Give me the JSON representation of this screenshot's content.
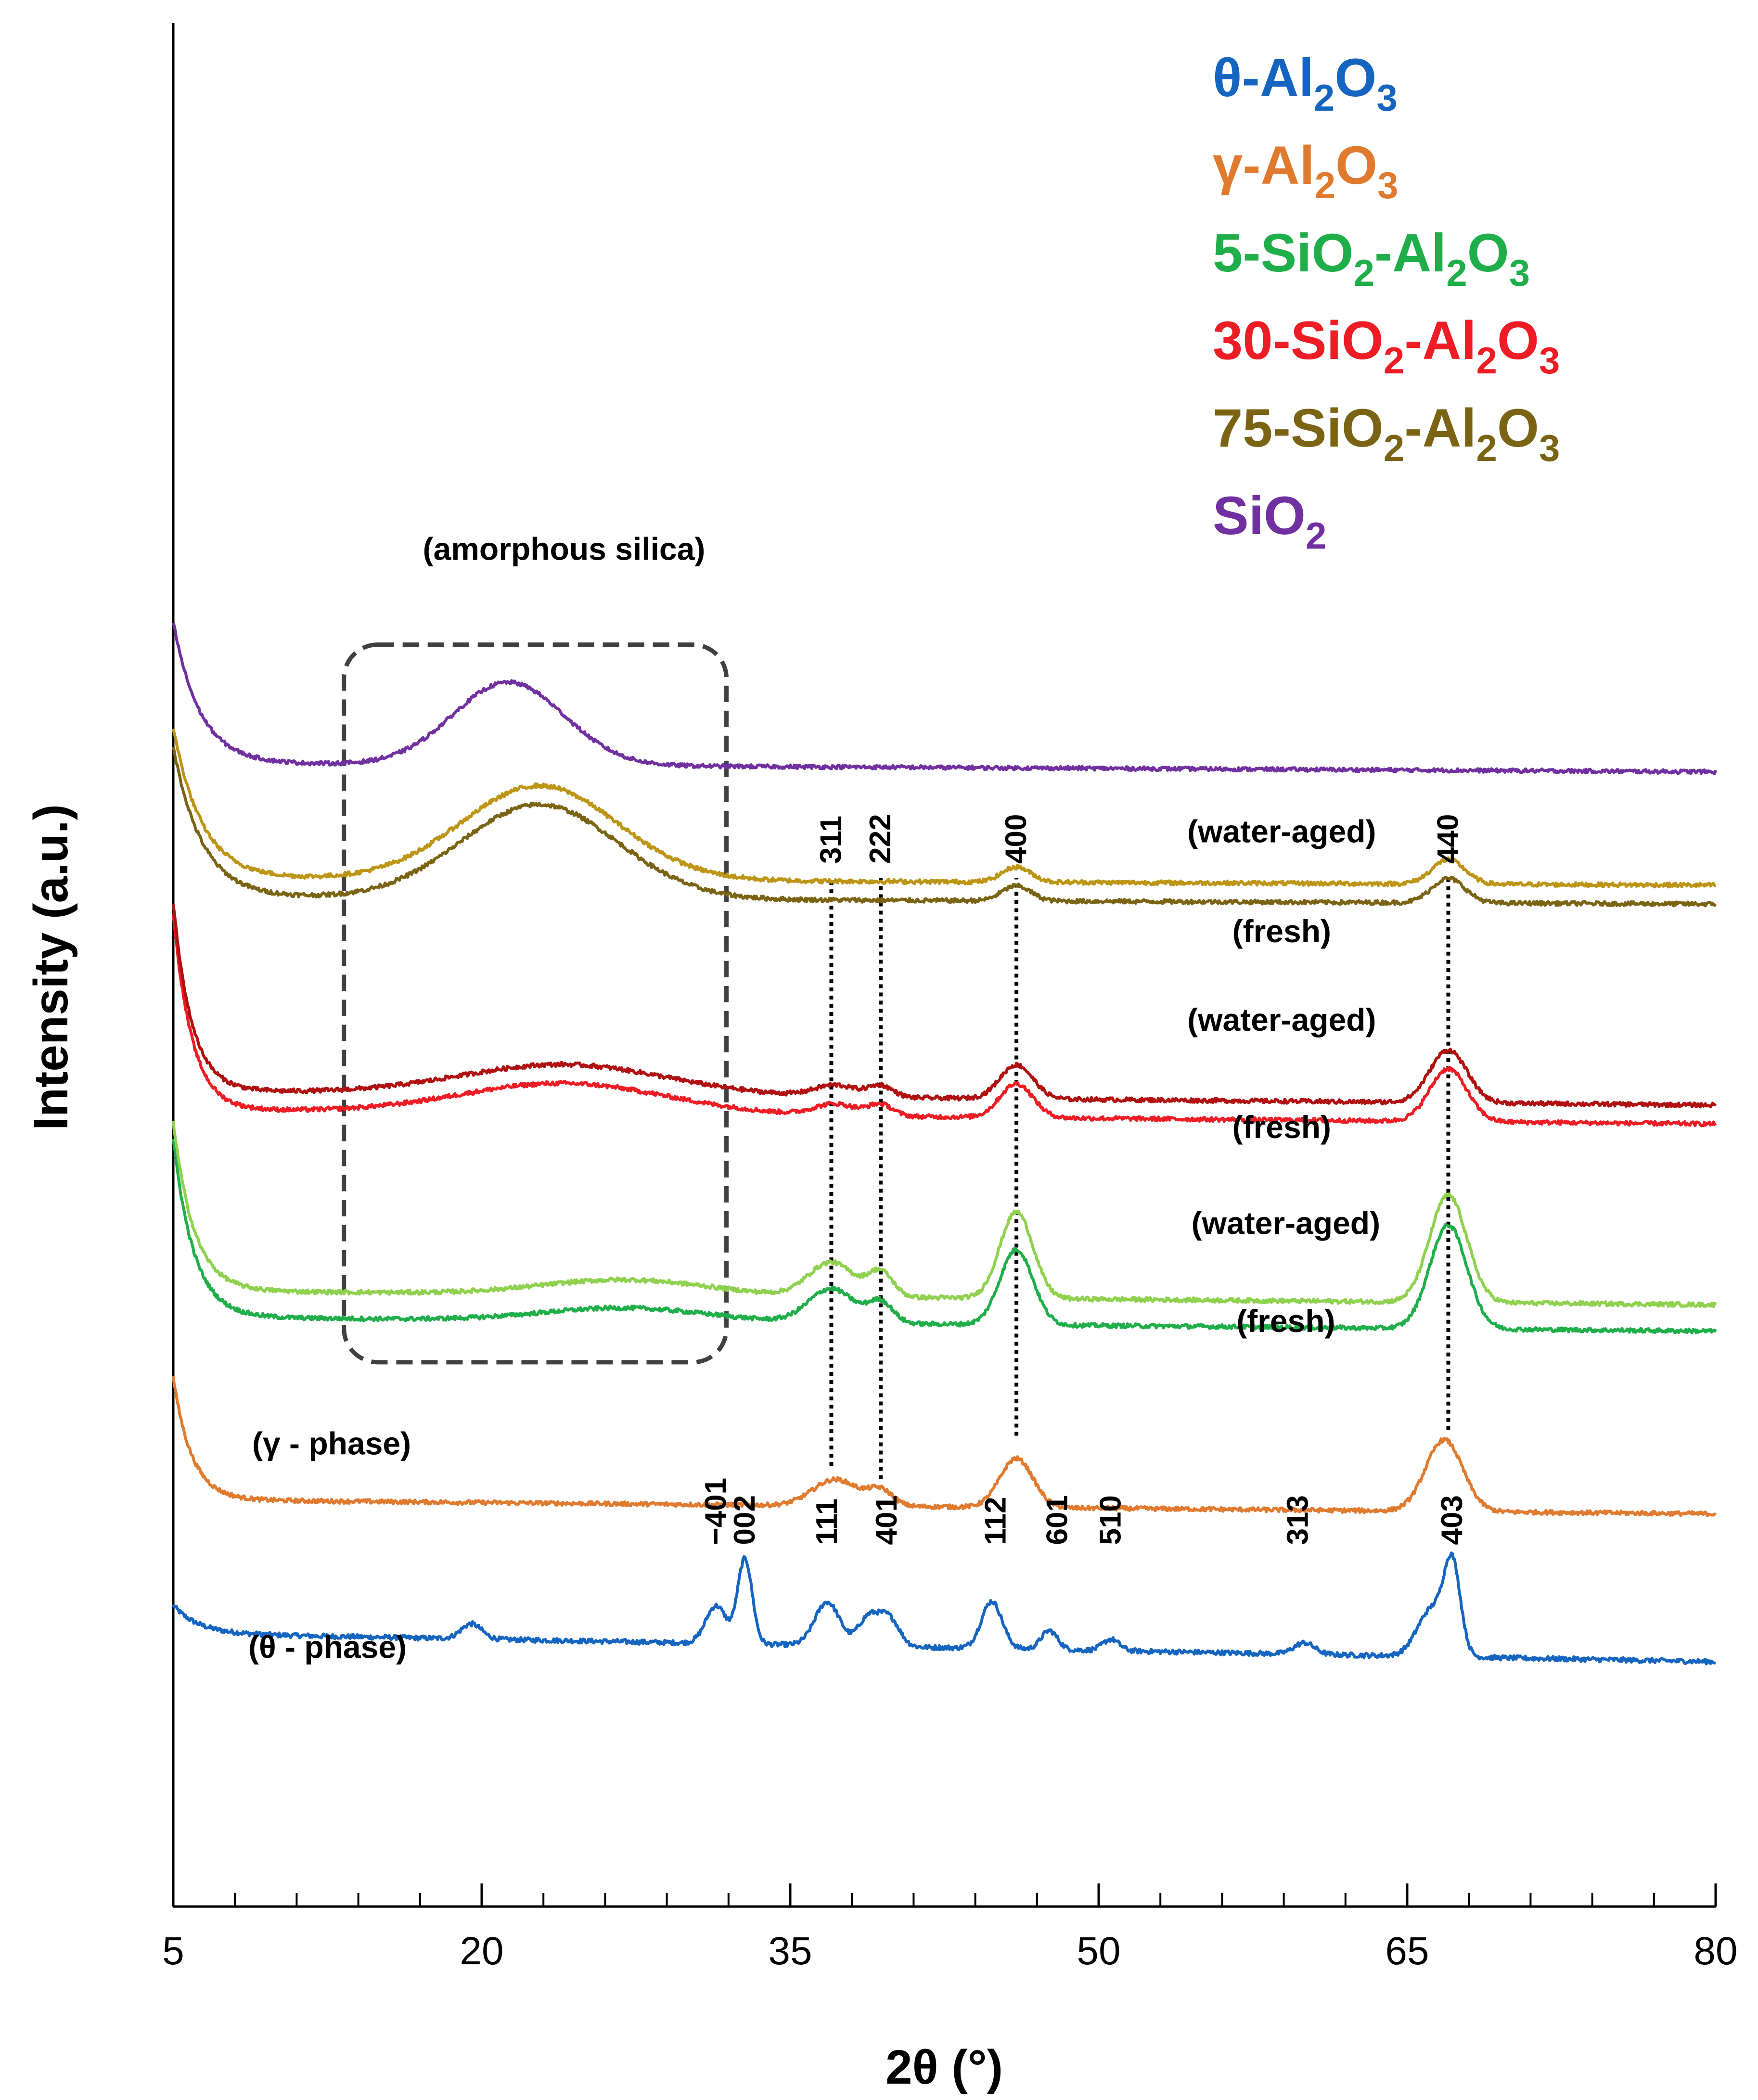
{
  "chart_data": {
    "type": "line",
    "title": "",
    "xlabel": "2θ (°)",
    "ylabel": "Intensity (a.u.)",
    "xlim": [
      5,
      80
    ],
    "ylim": [
      0,
      100
    ],
    "xticks": [
      "5",
      "20",
      "35",
      "50",
      "65",
      "80"
    ],
    "xtick_values": [
      5,
      20,
      35,
      50,
      65,
      80
    ],
    "minor_tick_step": 3,
    "legend": [
      {
        "main": "θ-Al",
        "sub1": "2",
        "mid": "O",
        "sub2": "3",
        "tail": "",
        "color": "#1565c0"
      },
      {
        "main": "γ-Al",
        "sub1": "2",
        "mid": "O",
        "sub2": "3",
        "tail": "",
        "color": "#e07a2e"
      },
      {
        "main": "5-SiO",
        "sub1": "2",
        "mid": "-Al",
        "sub2": "2",
        "tail": "O",
        "sub3": "3",
        "color": "#1fae4a"
      },
      {
        "main": "30-SiO",
        "sub1": "2",
        "mid": "-Al",
        "sub2": "2",
        "tail": "O",
        "sub3": "3",
        "color": "#ee1c24"
      },
      {
        "main": "75-SiO",
        "sub1": "2",
        "mid": "-Al",
        "sub2": "2",
        "tail": "O",
        "sub3": "3",
        "color": "#7a6414"
      },
      {
        "main": "SiO",
        "sub1": "2",
        "mid": "",
        "sub2": "",
        "tail": "",
        "color": "#7030a0"
      }
    ],
    "series": [
      {
        "name": "θ-Al2O3",
        "color": "#1565c0",
        "base": 14.5,
        "baseline_slope": -0.02,
        "peaks": [
          [
            19.5,
            0.8,
            0.5
          ],
          [
            31.4,
            2.0,
            0.5
          ],
          [
            32.8,
            4.5,
            0.35
          ],
          [
            36.8,
            2.3,
            0.6
          ],
          [
            38.8,
            1.5,
            0.5
          ],
          [
            39.8,
            1.5,
            0.5
          ],
          [
            44.8,
            2.5,
            0.5
          ],
          [
            47.6,
            1.0,
            0.4
          ],
          [
            50.6,
            0.6,
            0.4
          ],
          [
            60.0,
            0.6,
            0.5
          ],
          [
            66.2,
            2.5,
            0.7
          ],
          [
            67.2,
            4.5,
            0.4
          ]
        ],
        "low_angle": [
          1.5,
          1.2
        ],
        "noise": 0.25
      },
      {
        "name": "γ-Al2O3",
        "color": "#e07a2e",
        "base": 21.6,
        "baseline_slope": -0.01,
        "peaks": [
          [
            37.2,
            1.4,
            1.1
          ],
          [
            39.4,
            0.8,
            0.6
          ],
          [
            46.0,
            2.6,
            0.8
          ],
          [
            66.8,
            3.8,
            0.9
          ]
        ],
        "low_angle": [
          6.5,
          0.9
        ],
        "noise": 0.22
      },
      {
        "name": "5-SiO2-Al2O3 (fresh)",
        "color": "#1fae4a",
        "base": 31.3,
        "baseline_slope": -0.01,
        "peaks": [
          [
            27.0,
            0.7,
            4.0
          ],
          [
            37.0,
            1.8,
            1.1
          ],
          [
            39.4,
            1.1,
            0.6
          ],
          [
            46.0,
            4.0,
            0.8
          ],
          [
            67.0,
            5.5,
            0.9
          ]
        ],
        "low_angle": [
          9.5,
          1.0
        ],
        "noise": 0.22
      },
      {
        "name": "5-SiO2-Al2O3 (water-aged)",
        "color": "#8fd14f",
        "base": 32.7,
        "baseline_slope": -0.01,
        "peaks": [
          [
            27.0,
            0.8,
            4.0
          ],
          [
            37.0,
            1.8,
            1.1
          ],
          [
            39.4,
            1.3,
            0.6
          ],
          [
            46.0,
            4.6,
            0.8
          ],
          [
            67.0,
            5.7,
            0.9
          ]
        ],
        "low_angle": [
          9.0,
          1.0
        ],
        "noise": 0.22
      },
      {
        "name": "30-SiO2-Al2O3 (fresh)",
        "color": "#ee1c24",
        "base": 42.3,
        "baseline_slope": -0.01,
        "peaks": [
          [
            24.0,
            1.6,
            5.0
          ],
          [
            37.2,
            0.6,
            1.0
          ],
          [
            39.4,
            0.6,
            0.6
          ],
          [
            46.0,
            1.8,
            0.8
          ],
          [
            67.0,
            2.8,
            0.9
          ]
        ],
        "low_angle": [
          10.5,
          0.9
        ],
        "noise": 0.22
      },
      {
        "name": "30-SiO2-Al2O3 (water-aged)",
        "color": "#b01010",
        "base": 43.3,
        "baseline_slope": -0.01,
        "peaks": [
          [
            24.0,
            1.6,
            5.0
          ],
          [
            37.2,
            0.6,
            1.0
          ],
          [
            39.4,
            0.6,
            0.6
          ],
          [
            46.0,
            1.8,
            0.8
          ],
          [
            67.0,
            2.8,
            0.9
          ]
        ],
        "low_angle": [
          10.0,
          0.9
        ],
        "noise": 0.22
      },
      {
        "name": "75-SiO2-Al2O3 (fresh)",
        "color": "#7a6414",
        "base": 53.6,
        "baseline_slope": -0.005,
        "peaks": [
          [
            22.8,
            5.0,
            3.8
          ],
          [
            46.0,
            0.8,
            0.7
          ],
          [
            67.0,
            1.3,
            0.8
          ]
        ],
        "low_angle": [
          8.0,
          1.4
        ],
        "noise": 0.22
      },
      {
        "name": "75-SiO2-Al2O3 (water-aged)",
        "color": "#bd9516",
        "base": 54.6,
        "baseline_slope": -0.005,
        "peaks": [
          [
            22.8,
            5.0,
            3.8
          ],
          [
            46.0,
            0.8,
            0.7
          ],
          [
            67.0,
            1.3,
            0.8
          ]
        ],
        "low_angle": [
          8.0,
          1.4
        ],
        "noise": 0.22
      },
      {
        "name": "SiO2",
        "color": "#7030a0",
        "base": 60.7,
        "baseline_slope": -0.006,
        "peaks": [
          [
            21.3,
            4.4,
            2.7
          ]
        ],
        "low_angle": [
          7.5,
          1.3
        ],
        "noise": 0.2
      }
    ],
    "reference_lines": [
      {
        "x": 37.0,
        "y_from": 23.4,
        "y_to": 54.6,
        "label": "311"
      },
      {
        "x": 39.4,
        "y_from": 22.7,
        "y_to": 54.6,
        "label": "222"
      },
      {
        "x": 46.0,
        "y_from": 25.0,
        "y_to": 54.6,
        "label": "400"
      },
      {
        "x": 67.0,
        "y_from": 25.3,
        "y_to": 54.6,
        "label": "440"
      }
    ],
    "theta_peak_labels": [
      {
        "x": 31.4,
        "label": "−401"
      },
      {
        "x": 32.8,
        "label": "002"
      },
      {
        "x": 36.8,
        "label": "111"
      },
      {
        "x": 39.7,
        "label": "401"
      },
      {
        "x": 45.0,
        "label": "112"
      },
      {
        "x": 48.0,
        "label": "601"
      },
      {
        "x": 50.6,
        "label": "510"
      },
      {
        "x": 59.7,
        "label": "313"
      },
      {
        "x": 67.2,
        "label": "403"
      }
    ],
    "annotations": [
      {
        "text": "(amorphous silica)",
        "x": 24.0,
        "y": 71.5
      },
      {
        "text": "(water-aged)",
        "x": 58.9,
        "y": 56.5
      },
      {
        "text": "(fresh)",
        "x": 58.9,
        "y": 51.2
      },
      {
        "text": "(water-aged)",
        "x": 58.9,
        "y": 46.5
      },
      {
        "text": "(fresh)",
        "x": 58.9,
        "y": 40.8
      },
      {
        "text": "(water-aged)",
        "x": 59.1,
        "y": 35.7
      },
      {
        "text": "(fresh)",
        "x": 59.1,
        "y": 30.5
      },
      {
        "text": "(γ - phase)",
        "x": 12.7,
        "y": 24.0
      },
      {
        "text": "(θ - phase)",
        "x": 12.5,
        "y": 13.2
      }
    ],
    "highlight_box": {
      "label": "amorphous silica region",
      "x_from": 13.3,
      "x_to": 31.9,
      "y_from": 28.9,
      "y_to": 67.0
    }
  }
}
